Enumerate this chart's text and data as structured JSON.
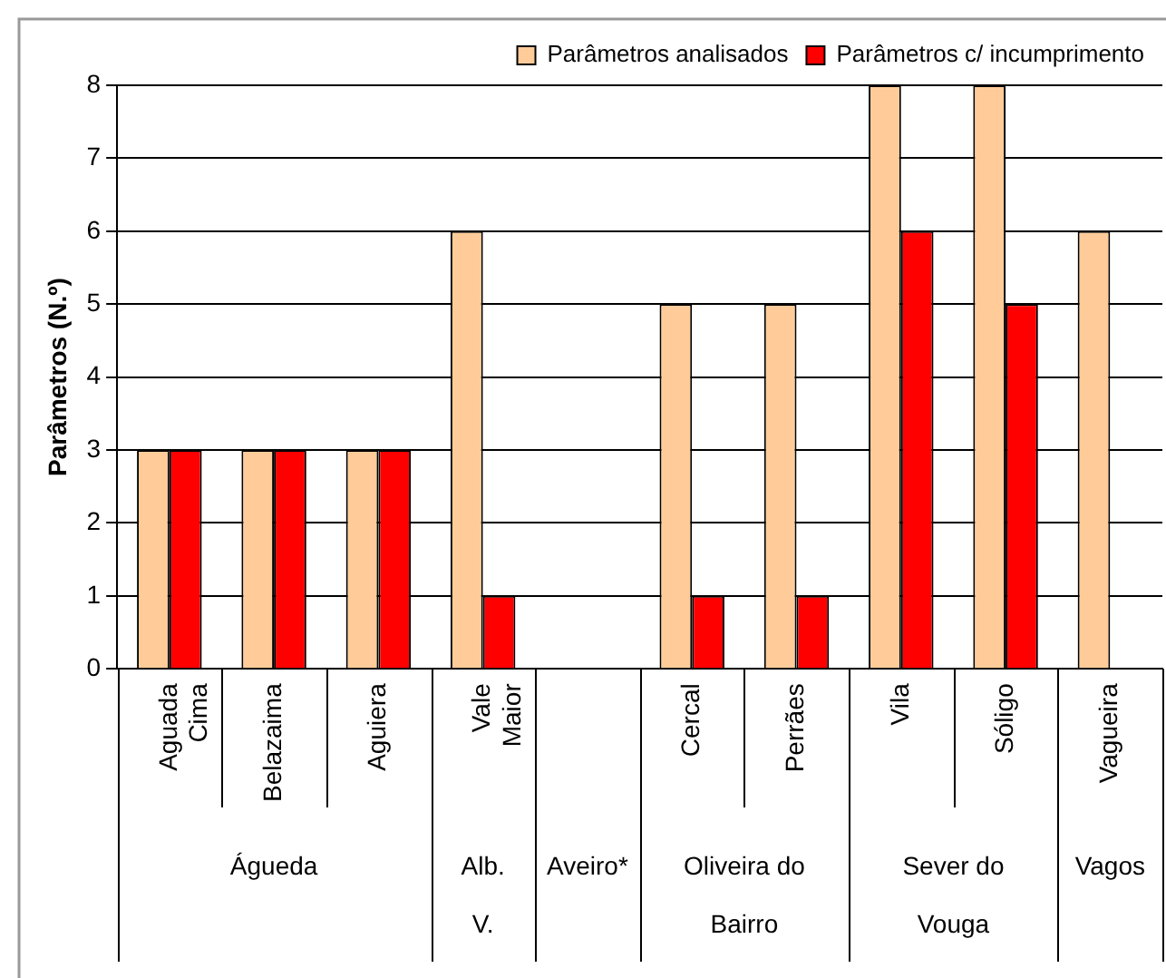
{
  "chart_data": {
    "type": "bar",
    "ylabel": "Parâmetros (N.º)",
    "categories": [
      "Aguada Cima",
      "Belazaima",
      "Aguiera",
      "Vale Maior",
      null,
      "Cercal",
      "Perrães",
      "Vila",
      "Sóligo",
      "Vagueira"
    ],
    "series": [
      {
        "name": "Parâmetros analisados",
        "color": "#ffcc99",
        "values": [
          3,
          3,
          3,
          6,
          null,
          5,
          5,
          8,
          8,
          6
        ]
      },
      {
        "name": "Parâmetros c/ incumprimento",
        "color": "#ff0000",
        "values": [
          3,
          3,
          3,
          1,
          null,
          1,
          1,
          6,
          5,
          null
        ]
      }
    ],
    "ylim": [
      0,
      8
    ],
    "yticks": [
      0,
      1,
      2,
      3,
      4,
      5,
      6,
      7,
      8
    ],
    "grid": "y",
    "legend": "top right",
    "annotations": [
      "Águeda",
      "Alb. V.",
      "Aveiro*",
      "Oliveira do Bairro",
      "Sever do Vouga",
      "Vagos"
    ]
  }
}
